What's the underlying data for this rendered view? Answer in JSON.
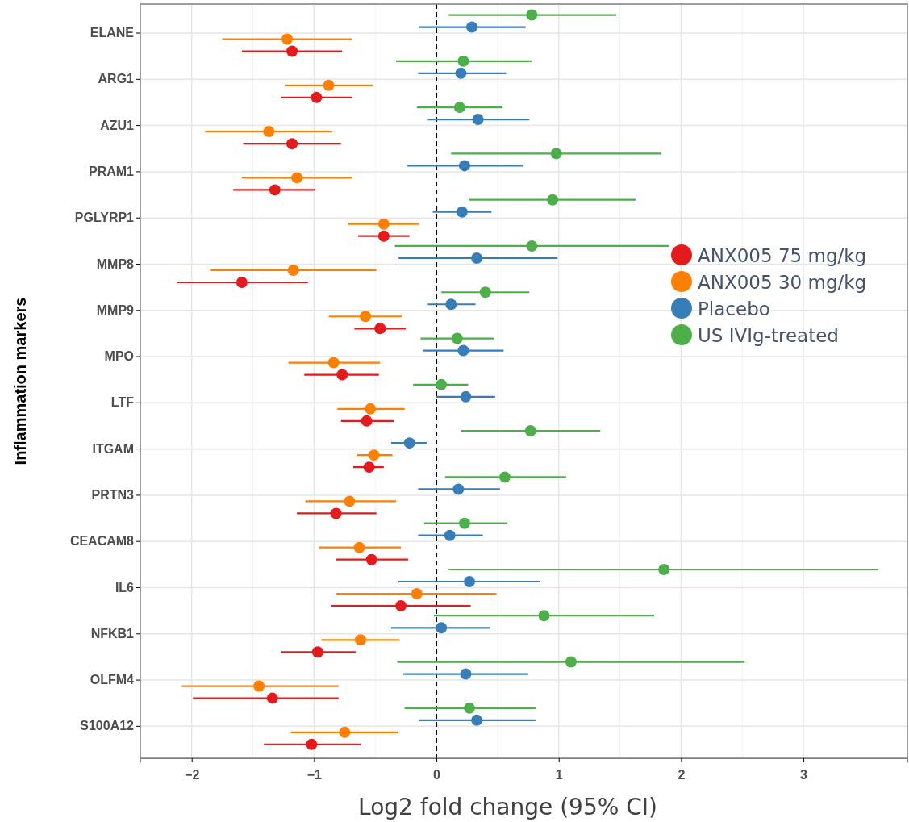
{
  "chart_data": {
    "type": "scatter",
    "orientation": "horizontal",
    "xlabel": "Log2 fold change (95% CI)",
    "ylabel": "Inflammation markers",
    "categories": [
      "ELANE",
      "ARG1",
      "AZU1",
      "PRAM1",
      "PGLYRP1",
      "MMP8",
      "MMP9",
      "MPO",
      "LTF",
      "ITGAM",
      "PRTN3",
      "CEACAM8",
      "IL6",
      "NFKB1",
      "OLFM4",
      "S100A12"
    ],
    "xlim": [
      -2.42,
      3.85
    ],
    "xticks": [
      -2,
      -1,
      0,
      1,
      2,
      3
    ],
    "grid": true,
    "legend": "right",
    "marker": "circle",
    "ref_lines": [
      {
        "axis": "x",
        "value": 0,
        "line_style": "dashed",
        "color": "#000000"
      }
    ],
    "series": [
      {
        "name": "US IVIg-treated",
        "color": "#4daf4a",
        "values": [
          0.78,
          0.22,
          0.19,
          0.98,
          0.95,
          0.78,
          0.4,
          0.17,
          0.04,
          0.77,
          0.56,
          0.23,
          1.86,
          0.88,
          1.1,
          0.27
        ],
        "errors": [
          [
            0.1,
            1.47
          ],
          [
            -0.33,
            0.78
          ],
          [
            -0.16,
            0.54
          ],
          [
            0.12,
            1.84
          ],
          [
            0.27,
            1.63
          ],
          [
            -0.34,
            1.9
          ],
          [
            0.04,
            0.76
          ],
          [
            -0.13,
            0.47
          ],
          [
            -0.19,
            0.26
          ],
          [
            0.2,
            1.34
          ],
          [
            0.07,
            1.06
          ],
          [
            -0.1,
            0.58
          ],
          [
            0.1,
            3.61
          ],
          [
            -0.02,
            1.78
          ],
          [
            -0.32,
            2.52
          ],
          [
            -0.26,
            0.81
          ]
        ]
      },
      {
        "name": "Placebo",
        "color": "#377eb8",
        "values": [
          0.29,
          0.2,
          0.34,
          0.23,
          0.21,
          0.33,
          0.12,
          0.22,
          0.24,
          -0.22,
          0.18,
          0.11,
          0.27,
          0.04,
          0.24,
          0.33
        ],
        "errors": [
          [
            -0.14,
            0.73
          ],
          [
            -0.15,
            0.57
          ],
          [
            -0.07,
            0.76
          ],
          [
            -0.24,
            0.71
          ],
          [
            -0.03,
            0.45
          ],
          [
            -0.31,
            0.99
          ],
          [
            -0.07,
            0.32
          ],
          [
            -0.11,
            0.55
          ],
          [
            0.0,
            0.48
          ],
          [
            -0.37,
            -0.08
          ],
          [
            -0.15,
            0.52
          ],
          [
            -0.15,
            0.38
          ],
          [
            -0.31,
            0.85
          ],
          [
            -0.37,
            0.44
          ],
          [
            -0.27,
            0.75
          ],
          [
            -0.14,
            0.81
          ]
        ]
      },
      {
        "name": "ANX005 30 mg/kg",
        "color": "#ff7f00",
        "values": [
          -1.22,
          -0.88,
          -1.37,
          -1.14,
          -0.43,
          -1.17,
          -0.58,
          -0.84,
          -0.54,
          -0.51,
          -0.71,
          -0.63,
          -0.16,
          -0.62,
          -1.45,
          -0.75
        ],
        "errors": [
          [
            -1.75,
            -0.69
          ],
          [
            -1.24,
            -0.52
          ],
          [
            -1.89,
            -0.85
          ],
          [
            -1.59,
            -0.69
          ],
          [
            -0.72,
            -0.14
          ],
          [
            -1.85,
            -0.49
          ],
          [
            -0.88,
            -0.28
          ],
          [
            -1.21,
            -0.46
          ],
          [
            -0.81,
            -0.26
          ],
          [
            -0.65,
            -0.36
          ],
          [
            -1.07,
            -0.33
          ],
          [
            -0.96,
            -0.29
          ],
          [
            -0.82,
            0.49
          ],
          [
            -0.94,
            -0.3
          ],
          [
            -2.08,
            -0.8
          ],
          [
            -1.19,
            -0.31
          ]
        ]
      },
      {
        "name": "ANX005 75 mg/kg",
        "color": "#e41a1c",
        "values": [
          -1.18,
          -0.98,
          -1.18,
          -1.32,
          -0.43,
          -1.59,
          -0.46,
          -0.77,
          -0.57,
          -0.55,
          -0.82,
          -0.53,
          -0.29,
          -0.97,
          -1.34,
          -1.02
        ],
        "errors": [
          [
            -1.59,
            -0.77
          ],
          [
            -1.27,
            -0.69
          ],
          [
            -1.58,
            -0.78
          ],
          [
            -1.66,
            -0.99
          ],
          [
            -0.64,
            -0.22
          ],
          [
            -2.12,
            -1.05
          ],
          [
            -0.67,
            -0.25
          ],
          [
            -1.08,
            -0.47
          ],
          [
            -0.78,
            -0.35
          ],
          [
            -0.68,
            -0.43
          ],
          [
            -1.14,
            -0.49
          ],
          [
            -0.82,
            -0.23
          ],
          [
            -0.86,
            0.28
          ],
          [
            -1.27,
            -0.66
          ],
          [
            -1.99,
            -0.8
          ],
          [
            -1.41,
            -0.62
          ]
        ]
      }
    ]
  }
}
